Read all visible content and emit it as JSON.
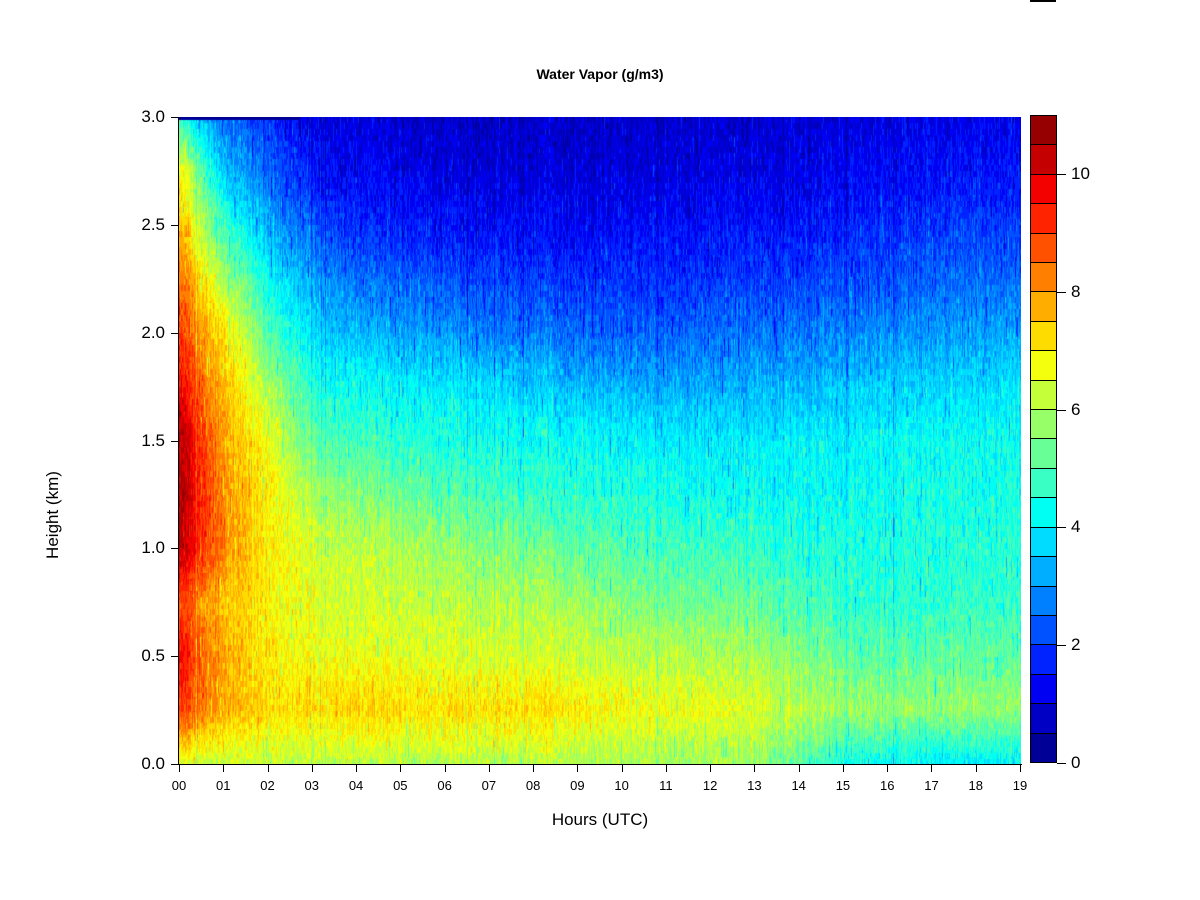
{
  "title": "Water Vapor (g/m3)",
  "axes": {
    "x": {
      "label": "Hours (UTC)",
      "tick_labels": [
        "00",
        "01",
        "02",
        "03",
        "04",
        "05",
        "06",
        "07",
        "08",
        "09",
        "10",
        "11",
        "12",
        "13",
        "14",
        "15",
        "16",
        "17",
        "18",
        "19"
      ],
      "tick_values": [
        0,
        1,
        2,
        3,
        4,
        5,
        6,
        7,
        8,
        9,
        10,
        11,
        12,
        13,
        14,
        15,
        16,
        17,
        18,
        19
      ],
      "range": [
        0,
        19
      ]
    },
    "y": {
      "label": "Height (km)",
      "tick_labels": [
        "0.0",
        "0.5",
        "1.0",
        "1.5",
        "2.0",
        "2.5",
        "3.0"
      ],
      "tick_values": [
        0,
        0.5,
        1,
        1.5,
        2,
        2.5,
        3
      ],
      "range": [
        0,
        3
      ]
    }
  },
  "colorbar": {
    "range": [
      0,
      11
    ],
    "segment_step": 0.5,
    "tick_labels": [
      "0",
      "2",
      "4",
      "6",
      "8",
      "10"
    ],
    "tick_values": [
      0,
      2,
      4,
      6,
      8,
      10
    ],
    "colors_low_to_high": [
      "#000097",
      "#0000C5",
      "#0000F3",
      "#0023FF",
      "#0051FF",
      "#0080FF",
      "#00AEFF",
      "#00DCFF",
      "#00FFF3",
      "#3AFFC5",
      "#68FF97",
      "#97FF68",
      "#C5FF3A",
      "#F3FF0C",
      "#FFDC00",
      "#FFAE00",
      "#FF8000",
      "#FF5100",
      "#FF2300",
      "#F30000",
      "#C50000",
      "#970000"
    ]
  },
  "chart_data": {
    "type": "heatmap",
    "title": "Water Vapor (g/m3)",
    "xlabel": "Hours (UTC)",
    "ylabel": "Height (km)",
    "xlim": [
      0,
      19
    ],
    "ylim": [
      0,
      3
    ],
    "value_range": [
      0,
      11
    ],
    "legend_position": "right-colorbar",
    "grid": false,
    "x_hours": [
      0,
      1,
      2,
      3,
      4,
      5,
      6,
      7,
      8,
      9,
      10,
      11,
      12,
      13,
      14,
      15,
      16,
      17,
      18,
      19
    ],
    "y_heights_km": [
      0,
      0.25,
      0.5,
      0.75,
      1,
      1.25,
      1.5,
      1.75,
      2,
      2.25,
      2.5,
      2.75,
      3
    ],
    "values_g_m3_rows_by_height": [
      [
        6.5,
        6.3,
        6.2,
        6.2,
        6.2,
        6.1,
        6.1,
        6.1,
        6.1,
        6.0,
        6.0,
        5.9,
        5.9,
        5.8,
        5.2,
        4.4,
        4.2,
        4.0,
        4.0,
        4.1
      ],
      [
        9.0,
        7.8,
        7.2,
        7.3,
        7.4,
        7.3,
        7.2,
        7.3,
        7.2,
        7.0,
        6.8,
        6.7,
        6.6,
        6.5,
        6.2,
        5.8,
        5.8,
        5.7,
        5.7,
        5.8
      ],
      [
        9.5,
        7.8,
        7.0,
        6.8,
        6.7,
        6.6,
        6.5,
        6.5,
        6.4,
        6.3,
        6.2,
        6.1,
        6.0,
        5.9,
        5.6,
        5.2,
        5.1,
        5.1,
        5.2,
        5.2
      ],
      [
        8.8,
        7.6,
        6.9,
        6.6,
        6.4,
        6.3,
        6.2,
        6.1,
        6.0,
        5.8,
        5.6,
        5.4,
        5.3,
        5.2,
        5.0,
        4.7,
        4.6,
        4.6,
        4.7,
        4.8
      ],
      [
        10.3,
        8.2,
        7.0,
        6.5,
        6.2,
        6.0,
        5.8,
        5.6,
        5.4,
        5.2,
        5.0,
        4.9,
        4.8,
        4.7,
        4.6,
        4.5,
        4.5,
        4.5,
        4.6,
        4.6
      ],
      [
        10.5,
        8.1,
        6.9,
        6.0,
        5.6,
        5.3,
        5.1,
        4.9,
        4.7,
        4.6,
        4.5,
        4.4,
        4.3,
        4.3,
        4.3,
        4.2,
        4.3,
        4.4,
        4.4,
        4.5
      ],
      [
        10.4,
        7.9,
        6.7,
        5.2,
        4.8,
        4.6,
        4.5,
        4.4,
        4.3,
        4.2,
        4.1,
        4.0,
        4.0,
        4.0,
        4.1,
        4.1,
        4.2,
        4.2,
        4.3,
        4.3
      ],
      [
        9.6,
        7.6,
        6.0,
        4.6,
        4.3,
        4.1,
        4.0,
        3.8,
        3.6,
        3.4,
        3.3,
        3.2,
        3.2,
        3.3,
        3.4,
        3.5,
        3.6,
        3.7,
        3.8,
        3.9
      ],
      [
        9.0,
        7.2,
        5.0,
        3.8,
        3.4,
        3.2,
        3.0,
        2.8,
        2.6,
        2.5,
        2.4,
        2.4,
        2.5,
        2.6,
        2.7,
        2.8,
        2.9,
        3.0,
        3.1,
        3.2
      ],
      [
        8.4,
        6.0,
        4.2,
        3.2,
        2.6,
        2.4,
        2.2,
        2.1,
        2.0,
        1.9,
        1.9,
        1.8,
        1.9,
        2.0,
        2.1,
        2.2,
        2.3,
        2.4,
        2.5,
        2.6
      ],
      [
        7.6,
        4.8,
        3.2,
        2.4,
        1.8,
        1.6,
        1.5,
        1.4,
        1.4,
        1.3,
        1.4,
        1.4,
        1.5,
        1.5,
        1.6,
        1.7,
        1.8,
        1.9,
        2.0,
        2.0
      ],
      [
        6.8,
        3.6,
        2.4,
        1.6,
        1.3,
        1.2,
        1.1,
        1.0,
        1.0,
        1.0,
        1.0,
        1.0,
        1.1,
        1.1,
        1.2,
        1.3,
        1.4,
        1.4,
        1.5,
        1.5
      ],
      [
        4.5,
        2.6,
        1.8,
        1.2,
        1.0,
        0.9,
        0.8,
        0.8,
        0.8,
        0.8,
        0.8,
        0.8,
        0.9,
        0.9,
        1.0,
        1.0,
        1.1,
        1.1,
        1.2,
        1.2
      ]
    ],
    "notes": {
      "texture": "fine vertical speckle streaks (high-time-resolution columns)",
      "dark_top_edge_hours": [
        0,
        2.7
      ]
    }
  }
}
